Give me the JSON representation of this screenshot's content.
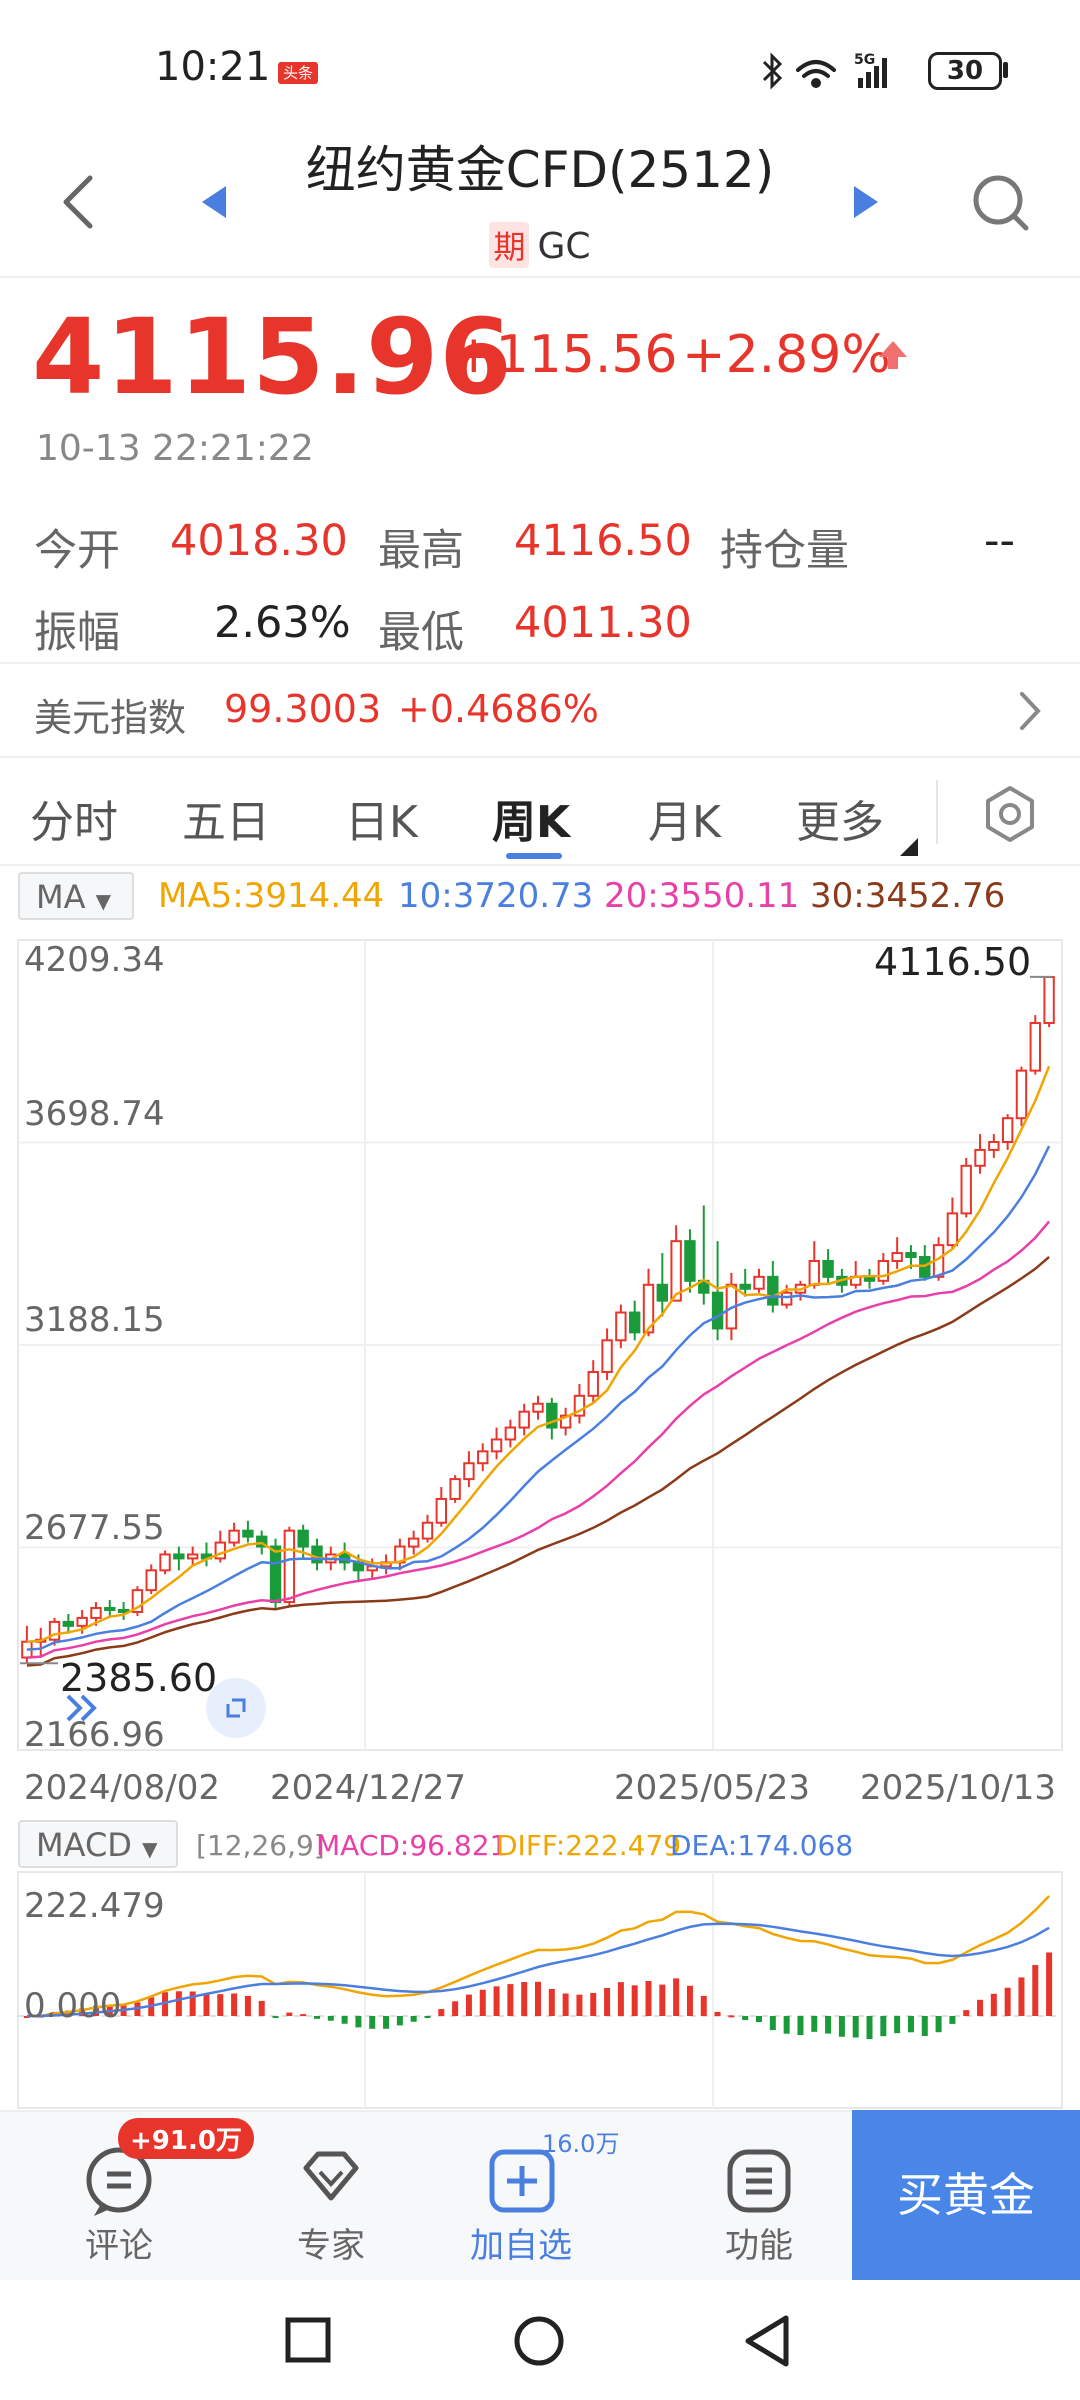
{
  "status": {
    "time": "10:21",
    "app_badge": "头条",
    "network": "5G",
    "battery": "30"
  },
  "header": {
    "title": "纽约黄金CFD(2512)",
    "badge": "期",
    "code": "GC"
  },
  "quote": {
    "price": "4115.96",
    "change": "+115.56",
    "change_pct": "+2.89%",
    "timestamp": "10-13 22:21:22",
    "open_label": "今开",
    "open": "4018.30",
    "high_label": "最高",
    "high": "4116.50",
    "oi_label": "持仓量",
    "oi": "--",
    "amp_label": "振幅",
    "amp": "2.63%",
    "low_label": "最低",
    "low": "4011.30"
  },
  "dxy": {
    "label": "美元指数",
    "value": "99.3003",
    "change": "+0.4686%"
  },
  "tabs": [
    "分时",
    "五日",
    "日K",
    "周K",
    "月K",
    "更多"
  ],
  "active_tab": "周K",
  "ma": {
    "select": "MA",
    "ma5": "MA5:3914.44",
    "ma10": "10:3720.73",
    "ma20": "20:3550.11",
    "ma30": "30:3452.76",
    "colors": {
      "ma5": "#f0a500",
      "ma10": "#4a7fe0",
      "ma20": "#e83fa8",
      "ma30": "#8b3a1a",
      "up": "#e8352c",
      "down": "#1a9a3a"
    }
  },
  "chart_data": [
    {
      "type": "candlestick",
      "title": "",
      "yaxis_labels": [
        "4209.34",
        "3698.74",
        "3188.15",
        "2677.55",
        "2166.96"
      ],
      "ylim": [
        2166.96,
        4209.34
      ],
      "xaxis_labels": [
        "2024/08/02",
        "2024/12/27",
        "2025/05/23",
        "2025/10/13"
      ],
      "max_marker": "4116.50",
      "min_marker": "2385.60",
      "candles": [
        [
          2400,
          2440,
          2385.6,
          2480
        ],
        [
          2440,
          2445,
          2400,
          2475
        ],
        [
          2445,
          2490,
          2430,
          2500
        ],
        [
          2490,
          2480,
          2460,
          2510
        ],
        [
          2480,
          2500,
          2460,
          2520
        ],
        [
          2500,
          2525,
          2480,
          2540
        ],
        [
          2525,
          2520,
          2500,
          2545
        ],
        [
          2520,
          2515,
          2495,
          2540
        ],
        [
          2515,
          2570,
          2505,
          2580
        ],
        [
          2570,
          2620,
          2560,
          2635
        ],
        [
          2620,
          2660,
          2610,
          2670
        ],
        [
          2660,
          2650,
          2620,
          2680
        ],
        [
          2650,
          2660,
          2630,
          2680
        ],
        [
          2660,
          2650,
          2630,
          2690
        ],
        [
          2650,
          2690,
          2640,
          2720
        ],
        [
          2690,
          2720,
          2680,
          2740
        ],
        [
          2720,
          2705,
          2690,
          2745
        ],
        [
          2705,
          2680,
          2660,
          2720
        ],
        [
          2680,
          2540,
          2520,
          2700
        ],
        [
          2540,
          2720,
          2530,
          2730
        ],
        [
          2720,
          2680,
          2650,
          2735
        ],
        [
          2680,
          2640,
          2620,
          2700
        ],
        [
          2640,
          2660,
          2620,
          2680
        ],
        [
          2660,
          2640,
          2620,
          2690
        ],
        [
          2640,
          2620,
          2590,
          2660
        ],
        [
          2620,
          2630,
          2600,
          2650
        ],
        [
          2630,
          2640,
          2610,
          2660
        ],
        [
          2640,
          2680,
          2620,
          2700
        ],
        [
          2680,
          2700,
          2660,
          2720
        ],
        [
          2700,
          2740,
          2690,
          2760
        ],
        [
          2740,
          2800,
          2730,
          2830
        ],
        [
          2800,
          2850,
          2790,
          2860
        ],
        [
          2850,
          2890,
          2830,
          2920
        ],
        [
          2890,
          2920,
          2870,
          2940
        ],
        [
          2920,
          2950,
          2900,
          2980
        ],
        [
          2950,
          2980,
          2930,
          3000
        ],
        [
          2980,
          3020,
          2960,
          3040
        ],
        [
          3020,
          3040,
          3000,
          3060
        ],
        [
          3040,
          2980,
          2950,
          3055
        ],
        [
          2980,
          3010,
          2960,
          3030
        ],
        [
          3010,
          3060,
          2990,
          3090
        ],
        [
          3060,
          3120,
          3040,
          3150
        ],
        [
          3120,
          3200,
          3100,
          3230
        ],
        [
          3200,
          3270,
          3180,
          3290
        ],
        [
          3270,
          3220,
          3200,
          3300
        ],
        [
          3220,
          3340,
          3210,
          3380
        ],
        [
          3340,
          3300,
          3260,
          3420
        ],
        [
          3300,
          3450,
          3300,
          3490
        ],
        [
          3450,
          3350,
          3320,
          3480
        ],
        [
          3350,
          3320,
          3290,
          3540
        ],
        [
          3320,
          3230,
          3200,
          3450
        ],
        [
          3230,
          3340,
          3200,
          3370
        ],
        [
          3340,
          3330,
          3310,
          3380
        ],
        [
          3330,
          3360,
          3320,
          3380
        ],
        [
          3360,
          3290,
          3270,
          3400
        ],
        [
          3290,
          3320,
          3280,
          3340
        ],
        [
          3320,
          3340,
          3300,
          3350
        ],
        [
          3340,
          3400,
          3330,
          3450
        ],
        [
          3400,
          3360,
          3340,
          3430
        ],
        [
          3360,
          3340,
          3320,
          3380
        ],
        [
          3340,
          3360,
          3330,
          3400
        ],
        [
          3360,
          3350,
          3330,
          3380
        ],
        [
          3350,
          3400,
          3340,
          3420
        ],
        [
          3400,
          3420,
          3380,
          3460
        ],
        [
          3420,
          3410,
          3380,
          3440
        ],
        [
          3410,
          3360,
          3350,
          3440
        ],
        [
          3360,
          3440,
          3350,
          3460
        ],
        [
          3440,
          3520,
          3430,
          3560
        ],
        [
          3520,
          3640,
          3510,
          3660
        ],
        [
          3640,
          3680,
          3620,
          3720
        ],
        [
          3680,
          3700,
          3660,
          3720
        ],
        [
          3700,
          3760,
          3680,
          3770
        ],
        [
          3760,
          3880,
          3740,
          3890
        ],
        [
          3880,
          4000,
          3870,
          4020
        ],
        [
          4000,
          4115.96,
          3990,
          4116.5
        ]
      ]
    },
    {
      "type": "bar",
      "title": "",
      "indicator": "MACD",
      "params": "[12,26,9]",
      "macd": "MACD:96.821",
      "diff": "DIFF:222.479",
      "dea": "DEA:174.068",
      "yaxis_labels": [
        "222.479",
        "0.000"
      ]
    }
  ],
  "bottom": {
    "comment": "评论",
    "comment_badge": "+91.0万",
    "expert": "专家",
    "follow": "加自选",
    "follow_count": "16.0万",
    "func": "功能",
    "buy": "买黄金"
  }
}
